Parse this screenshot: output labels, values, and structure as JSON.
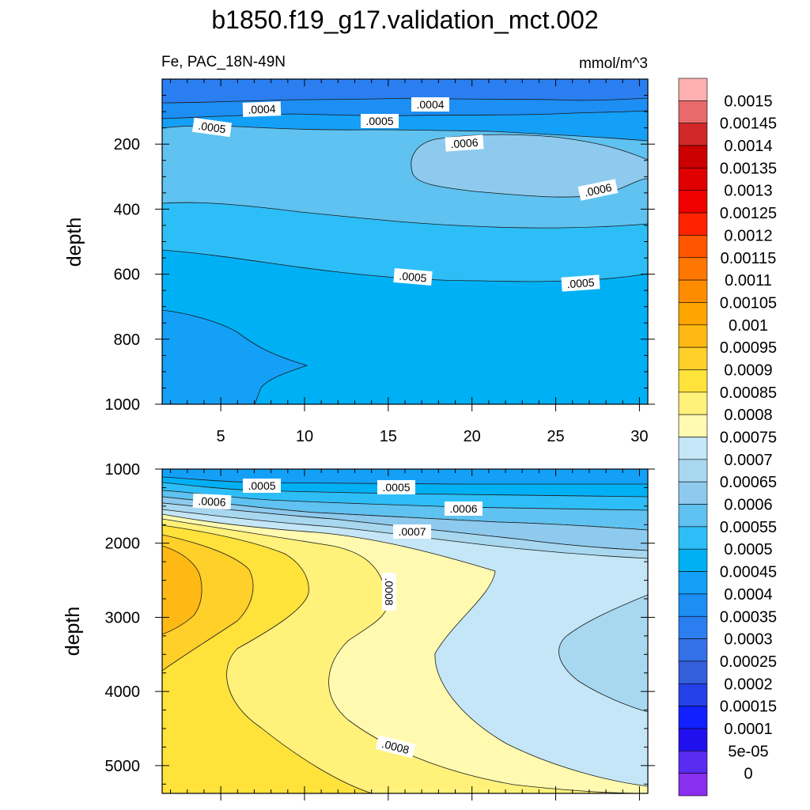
{
  "title": "b1850.f19_g17.validation_mct.002",
  "subtitle_left": "Fe, PAC_18N-49N",
  "subtitle_right": "mmol/m^3",
  "chart_data": [
    {
      "type": "contour",
      "panel": "upper",
      "ylabel": "depth",
      "xlabel": "",
      "xlim": [
        1.5,
        30.5
      ],
      "ylim": [
        0,
        1000
      ],
      "y_inverted": true,
      "xticks": [
        5,
        10,
        15,
        20,
        25,
        30
      ],
      "yticks": [
        200,
        400,
        600,
        800,
        1000
      ],
      "contour_labels": [
        ".0004",
        ".0004",
        ".0005",
        ".0005",
        ".0006",
        ".0006",
        ".0005",
        ".0005"
      ]
    },
    {
      "type": "contour",
      "panel": "lower",
      "ylabel": "depth",
      "xlabel": "",
      "xlim": [
        1.5,
        30.5
      ],
      "ylim": [
        1000,
        5375
      ],
      "y_inverted": true,
      "xticks": [
        5,
        10,
        15,
        20,
        25,
        30
      ],
      "yticks": [
        1000,
        2000,
        3000,
        4000,
        5000
      ],
      "contour_labels": [
        ".0005",
        ".0005",
        ".0006",
        ".0006",
        ".0007",
        ".0008",
        ".0008"
      ]
    }
  ],
  "colorbar": {
    "labels": [
      "0.0015",
      "0.00145",
      "0.0014",
      "0.00135",
      "0.0013",
      "0.00125",
      "0.0012",
      "0.00115",
      "0.0011",
      "0.00105",
      "0.001",
      "0.00095",
      "0.0009",
      "0.00085",
      "0.0008",
      "0.00075",
      "0.0007",
      "0.00065",
      "0.0006",
      "0.00055",
      "0.0005",
      "0.00045",
      "0.0004",
      "0.00035",
      "0.0003",
      "0.00025",
      "0.0002",
      "0.00015",
      "0.0001",
      "5e-05",
      "0"
    ],
    "colors": [
      "#ffb0b0",
      "#e86a6a",
      "#d02828",
      "#cc0000",
      "#e00000",
      "#f00000",
      "#ff2200",
      "#ff5500",
      "#ff7700",
      "#ff8c00",
      "#ffa500",
      "#ffb914",
      "#ffcf2a",
      "#ffe23a",
      "#fff17a",
      "#fffab0",
      "#c4e6f6",
      "#a8d8f0",
      "#8ecaee",
      "#5fc2f0",
      "#2ebef7",
      "#00b0f5",
      "#14a0f7",
      "#1c8ef4",
      "#2a7ef0",
      "#3470e8",
      "#345fdc",
      "#2440e8",
      "#1020ff",
      "#2010ee",
      "#5a2cf2",
      "#8a2ef0"
    ]
  },
  "palette": {
    "navy": "#2a7ef0",
    "blue2": "#1c8ef4",
    "blue3": "#14a0f7",
    "cyan": "#00b0f5",
    "lightblue": "#2ebef7",
    "sky": "#5fc2f0",
    "pale1": "#8ecaee",
    "pale2": "#a8d8f0",
    "pale3": "#c4e6f6",
    "cream": "#fffab0",
    "yellow1": "#fff17a",
    "yellow2": "#ffe23a",
    "yellow3": "#ffcf2a",
    "orange": "#ffb914"
  }
}
